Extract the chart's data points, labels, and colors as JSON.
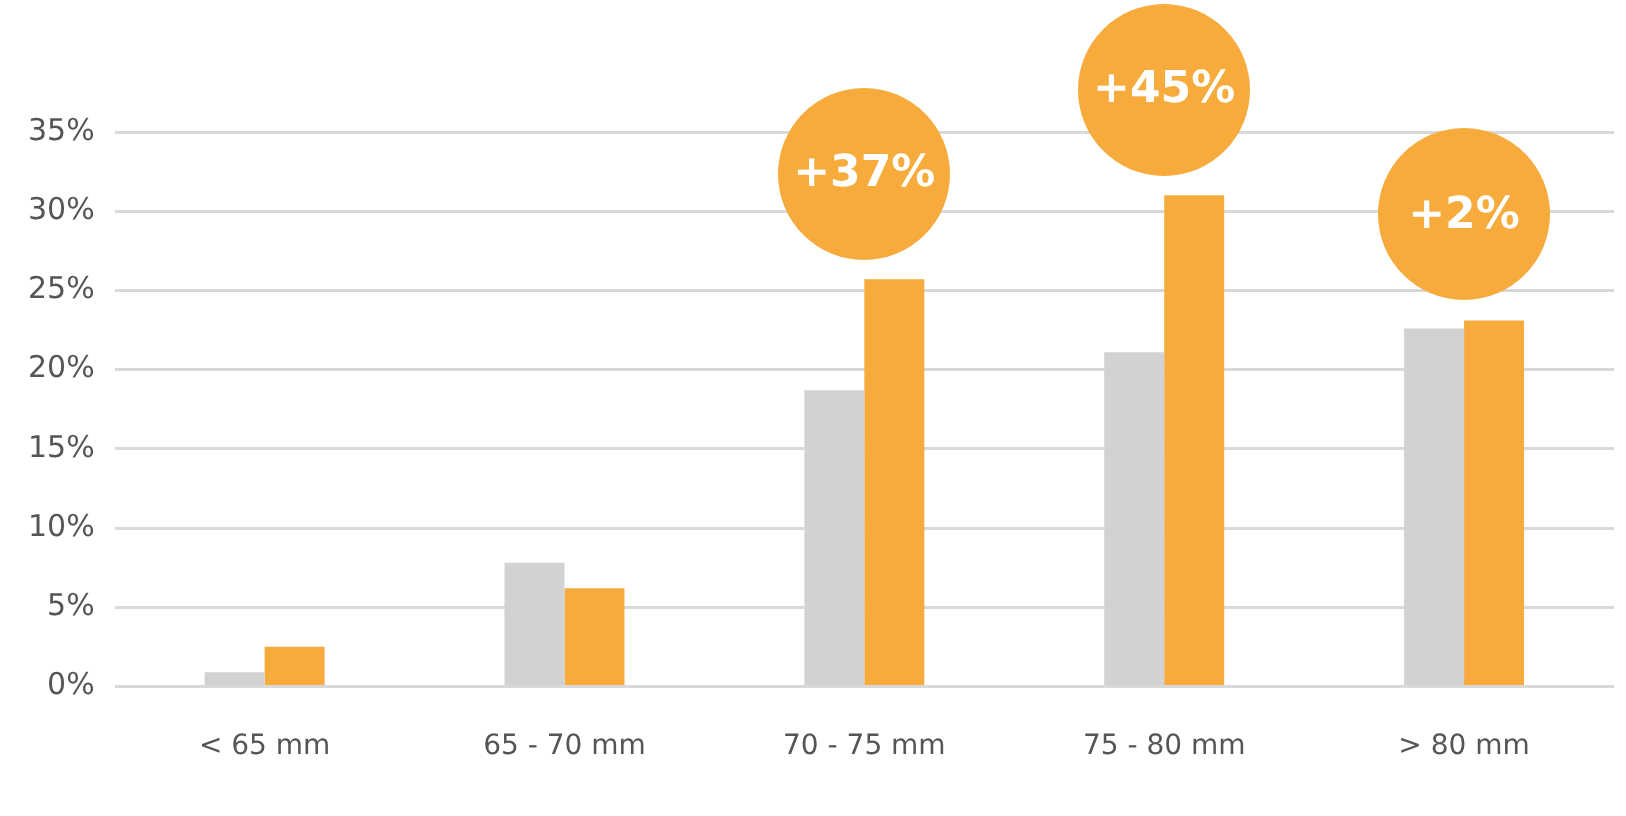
{
  "chart_data": {
    "type": "bar",
    "categories": [
      "< 65 mm",
      "65 - 70 mm",
      "70 - 75 mm",
      "75 - 80 mm",
      "> 80 mm"
    ],
    "series": [
      {
        "color": "#d1d2d4",
        "values": [
          0.9,
          7.8,
          18.7,
          21.1,
          22.6
        ]
      },
      {
        "color": "#f6ab3c",
        "values": [
          2.5,
          6.2,
          25.7,
          31.0,
          23.1
        ]
      }
    ],
    "ylim": [
      0,
      35
    ],
    "yticks": [
      {
        "value": 0,
        "label": "0%"
      },
      {
        "value": 5,
        "label": "5%"
      },
      {
        "value": 10,
        "label": "10%"
      },
      {
        "value": 15,
        "label": "15%"
      },
      {
        "value": 20,
        "label": "20%"
      },
      {
        "value": 25,
        "label": "25%"
      },
      {
        "value": 30,
        "label": "30%"
      },
      {
        "value": 35,
        "label": "35%"
      }
    ],
    "grid": "y",
    "legend": false,
    "annotations": [
      "+37%",
      "+45%",
      "+2%"
    ]
  }
}
